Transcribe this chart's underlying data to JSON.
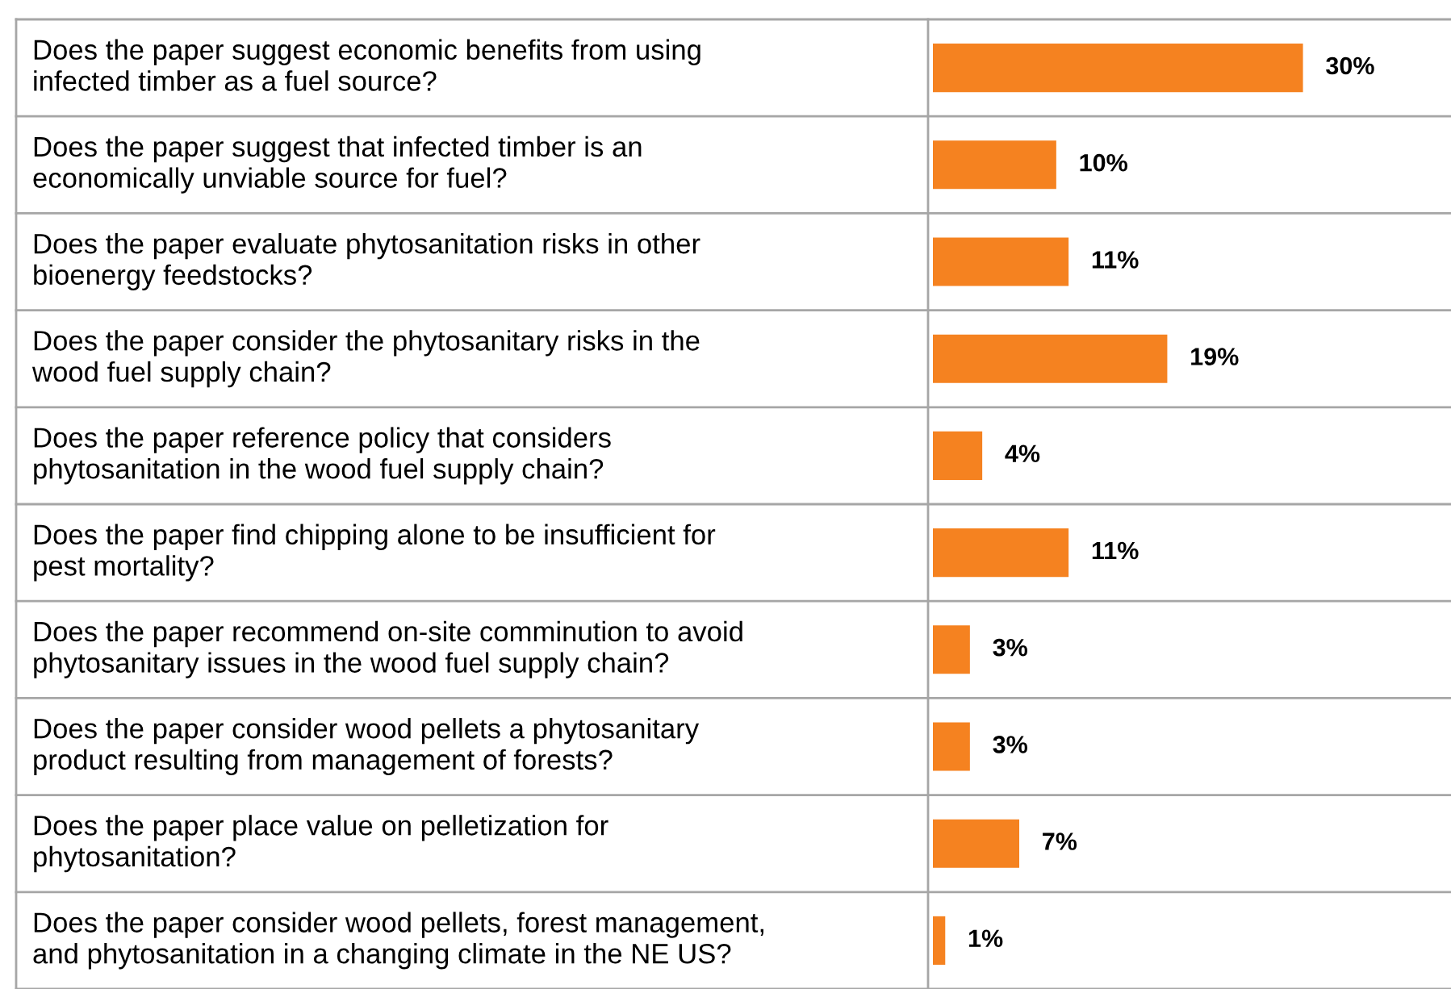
{
  "chart_data": {
    "type": "bar",
    "orientation": "horizontal",
    "categories": [
      "Does the paper suggest economic benefits from using\ninfected timber as a fuel source?",
      "Does the paper suggest that infected timber is an\neconomically unviable source for fuel?",
      "Does the paper evaluate phytosanitation risks in other\nbioenergy feedstocks?",
      "Does the paper consider the phytosanitary risks in the\nwood fuel supply chain?",
      "Does the paper reference policy that considers\nphytosanitation in the wood fuel supply chain?",
      "Does the paper find chipping alone to be insufficient for\npest mortality?",
      "Does the paper recommend on-site comminution to avoid\nphytosanitary issues in the wood fuel supply chain?",
      "Does the paper consider wood pellets a phytosanitary\nproduct resulting from management of forests?",
      "Does the paper place value on pelletization for\nphytosanitation?",
      "Does the paper consider wood pellets, forest management,\nand phytosanitation in a changing climate in the NE US?"
    ],
    "values": [
      30,
      10,
      11,
      19,
      4,
      11,
      3,
      3,
      7,
      1
    ],
    "value_labels": [
      "30%",
      "10%",
      "11%",
      "19%",
      "4%",
      "11%",
      "3%",
      "3%",
      "7%",
      "1%"
    ],
    "color": "#f58220",
    "grid": "y"
  }
}
